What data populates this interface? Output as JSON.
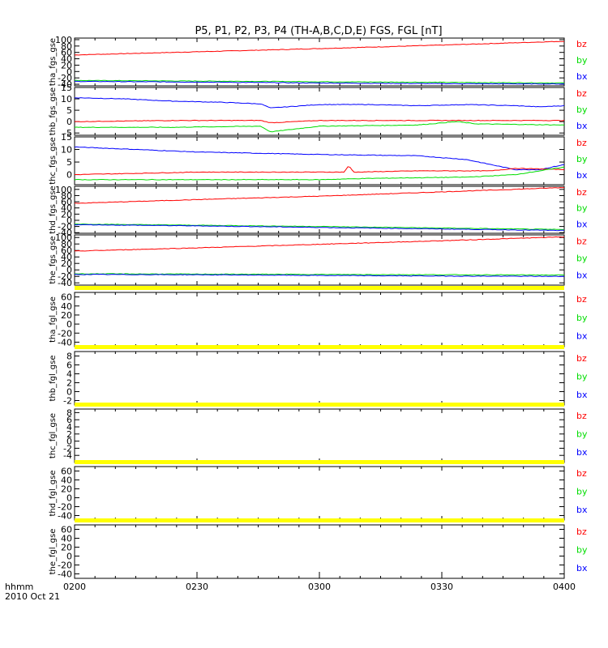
{
  "chart_data": {
    "type": "line",
    "title": "P5, P1, P2, P3, P4 (TH-A,B,C,D,E) FGS, FGL [nT]",
    "x_ticks": [
      "0200",
      "0230",
      "0300",
      "0330",
      "0400"
    ],
    "x_range": [
      "02:00",
      "04:00"
    ],
    "x_label_top": "hhmm",
    "x_label_bottom": "2010 Oct 21",
    "grid": false,
    "colors": {
      "bz": "#ff0000",
      "by": "#00dd00",
      "bx": "#0000ff",
      "nodata": "#ffff00"
    },
    "series_labels": [
      "bz",
      "by",
      "bx"
    ],
    "panels": [
      {
        "ylabel": "tha_fgs_gse",
        "ylim": [
          -45,
          105
        ],
        "yticks": [
          "100",
          "80",
          "60",
          "40",
          "20",
          "0",
          "-20",
          "-40"
        ],
        "series": [
          {
            "name": "bz",
            "x": [
              0,
              0.25,
              0.5,
              0.75,
              1
            ],
            "values": [
              52,
              62,
              72,
              83,
              95
            ]
          },
          {
            "name": "by",
            "x": [
              0,
              0.25,
              0.5,
              0.75,
              1
            ],
            "values": [
              -28,
              -30,
              -32,
              -34,
              -36
            ]
          },
          {
            "name": "bx",
            "x": [
              0,
              0.25,
              0.5,
              0.75,
              1
            ],
            "values": [
              -31,
              -33,
              -36,
              -38,
              -39
            ]
          }
        ]
      },
      {
        "ylabel": "thb_fgs_gse",
        "ylim": [
          -6,
          15
        ],
        "yticks": [
          "15",
          "10",
          "5",
          "0",
          "-5"
        ],
        "series": [
          {
            "name": "bx",
            "x": [
              0,
              0.1,
              0.2,
              0.3,
              0.38,
              0.4,
              0.5,
              0.6,
              0.7,
              0.8,
              0.9,
              0.95,
              1
            ],
            "values": [
              10.5,
              10,
              9,
              8.5,
              7.8,
              6,
              7.5,
              7.5,
              7,
              7.5,
              7,
              6.5,
              7
            ]
          },
          {
            "name": "bz",
            "x": [
              0,
              0.2,
              0.38,
              0.4,
              0.5,
              0.7,
              0.8,
              1
            ],
            "values": [
              0,
              0.5,
              0.5,
              -0.5,
              0.5,
              0.5,
              0.5,
              0.5
            ]
          },
          {
            "name": "by",
            "x": [
              0,
              0.2,
              0.38,
              0.4,
              0.5,
              0.7,
              0.78,
              0.82,
              1
            ],
            "values": [
              -2.5,
              -2.5,
              -2,
              -4.5,
              -2,
              -1.5,
              0,
              -1,
              -1.5
            ]
          }
        ]
      },
      {
        "ylabel": "thc_fgs_gse",
        "ylim": [
          -4,
          15
        ],
        "yticks": [
          "15",
          "10",
          "5",
          "0",
          "-5"
        ],
        "series": [
          {
            "name": "bx",
            "x": [
              0,
              0.25,
              0.5,
              0.7,
              0.8,
              0.85,
              0.9,
              0.95,
              1
            ],
            "values": [
              11,
              9,
              8,
              7.5,
              6,
              4,
              2,
              2,
              4
            ]
          },
          {
            "name": "bz",
            "x": [
              0,
              0.25,
              0.5,
              0.55,
              0.56,
              0.57,
              0.7,
              0.85,
              0.9,
              1
            ],
            "values": [
              0,
              1,
              1,
              1,
              3.5,
              1,
              1.5,
              1.5,
              2.5,
              2
            ]
          },
          {
            "name": "by",
            "x": [
              0,
              0.25,
              0.5,
              0.6,
              0.8,
              0.9,
              1
            ],
            "values": [
              -2,
              -2,
              -2,
              -1.5,
              -1,
              0,
              3
            ]
          }
        ]
      },
      {
        "ylabel": "thd_fgs_gse",
        "ylim": [
          -42,
          110
        ],
        "yticks": [
          "100",
          "80",
          "60",
          "40",
          "20",
          "0",
          "-20",
          "-40"
        ],
        "series": [
          {
            "name": "bz",
            "x": [
              0,
              0.25,
              0.5,
              0.75,
              1
            ],
            "values": [
              55,
              67,
              78,
              92,
              106
            ]
          },
          {
            "name": "by",
            "x": [
              0,
              0.25,
              0.5,
              0.75,
              1
            ],
            "values": [
              -12,
              -16,
              -20,
              -25,
              -30
            ]
          },
          {
            "name": "bx",
            "x": [
              0,
              0.25,
              0.5,
              0.75,
              1
            ],
            "values": [
              -14,
              -18,
              -23,
              -28,
              -33
            ]
          }
        ]
      },
      {
        "ylabel": "the_fgs_gse",
        "ylim": [
          -47,
          108
        ],
        "yticks": [
          "100",
          "80",
          "60",
          "40",
          "20",
          "0",
          "-20",
          "-40"
        ],
        "series": [
          {
            "name": "bz",
            "x": [
              0,
              0.25,
              0.5,
              0.75,
              1
            ],
            "values": [
              58,
              68,
              79,
              90,
              102
            ]
          },
          {
            "name": "by",
            "x": [
              0,
              0.25,
              0.5,
              0.75,
              1
            ],
            "values": [
              -12,
              -13,
              -14,
              -15,
              -16
            ]
          },
          {
            "name": "bx",
            "x": [
              0,
              0.25,
              0.5,
              0.75,
              1
            ],
            "values": [
              -14,
              -15,
              -17,
              -19,
              -20
            ]
          }
        ]
      },
      {
        "ylabel": "tha_fgl_gse",
        "ylim": [
          -50,
          70
        ],
        "yticks": [
          "60",
          "40",
          "20",
          "0",
          "-20",
          "-40"
        ],
        "series": []
      },
      {
        "ylabel": "thb_fgl_gse",
        "ylim": [
          -3,
          9
        ],
        "yticks": [
          "8",
          "6",
          "4",
          "2",
          "0",
          "-2"
        ],
        "series": []
      },
      {
        "ylabel": "thc_fgl_gse",
        "ylim": [
          -6,
          9
        ],
        "yticks": [
          "8",
          "6",
          "4",
          "2",
          "0",
          "-2",
          "-4"
        ],
        "series": []
      },
      {
        "ylabel": "thd_fgl_gse",
        "ylim": [
          -50,
          70
        ],
        "yticks": [
          "60",
          "40",
          "20",
          "0",
          "-20",
          "-40"
        ],
        "series": []
      },
      {
        "ylabel": "the_fgl_gse",
        "ylim": [
          -50,
          70
        ],
        "yticks": [
          "60",
          "40",
          "20",
          "0",
          "-20",
          "-40"
        ],
        "series": []
      }
    ]
  }
}
